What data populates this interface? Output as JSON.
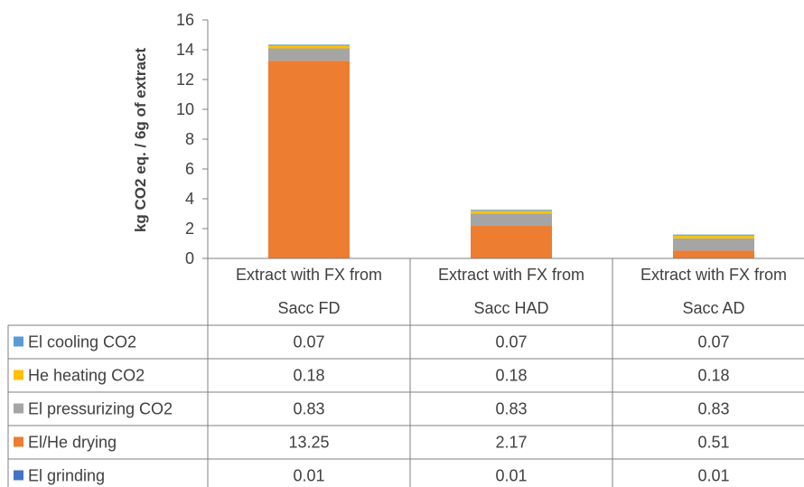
{
  "chart_data": {
    "type": "bar",
    "stacked": true,
    "ylabel": "kg CO2 eq. / 6g of extract",
    "ylim": [
      0,
      16
    ],
    "yticks": [
      0,
      2,
      4,
      6,
      8,
      10,
      12,
      14,
      16
    ],
    "categories": [
      [
        "Extract with FX from",
        "Sacc FD"
      ],
      [
        "Extract with FX from",
        "Sacc HAD"
      ],
      [
        "Extract with FX from",
        "Sacc AD"
      ]
    ],
    "series": [
      {
        "name": "El cooling CO2",
        "color": "#5b9bd5",
        "values": [
          0.07,
          0.07,
          0.07
        ],
        "labels": [
          "0.07",
          "0.07",
          "0.07"
        ]
      },
      {
        "name": "He heating CO2",
        "color": "#ffc000",
        "values": [
          0.18,
          0.18,
          0.18
        ],
        "labels": [
          "0.18",
          "0.18",
          "0.18"
        ]
      },
      {
        "name": "El pressurizing CO2",
        "color": "#a5a5a5",
        "values": [
          0.83,
          0.83,
          0.83
        ],
        "labels": [
          "0.83",
          "0.83",
          "0.83"
        ]
      },
      {
        "name": "El/He drying",
        "color": "#ed7d31",
        "values": [
          13.25,
          2.17,
          0.51
        ],
        "labels": [
          "13.25",
          "2.17",
          "0.51"
        ]
      },
      {
        "name": "El grinding",
        "color": "#4472c4",
        "values": [
          0.01,
          0.01,
          0.01
        ],
        "labels": [
          "0.01",
          "0.01",
          "0.01"
        ]
      }
    ],
    "stack_order": [
      "El grinding",
      "El/He drying",
      "El pressurizing CO2",
      "He heating CO2",
      "El cooling CO2"
    ],
    "legend": "data-table"
  }
}
